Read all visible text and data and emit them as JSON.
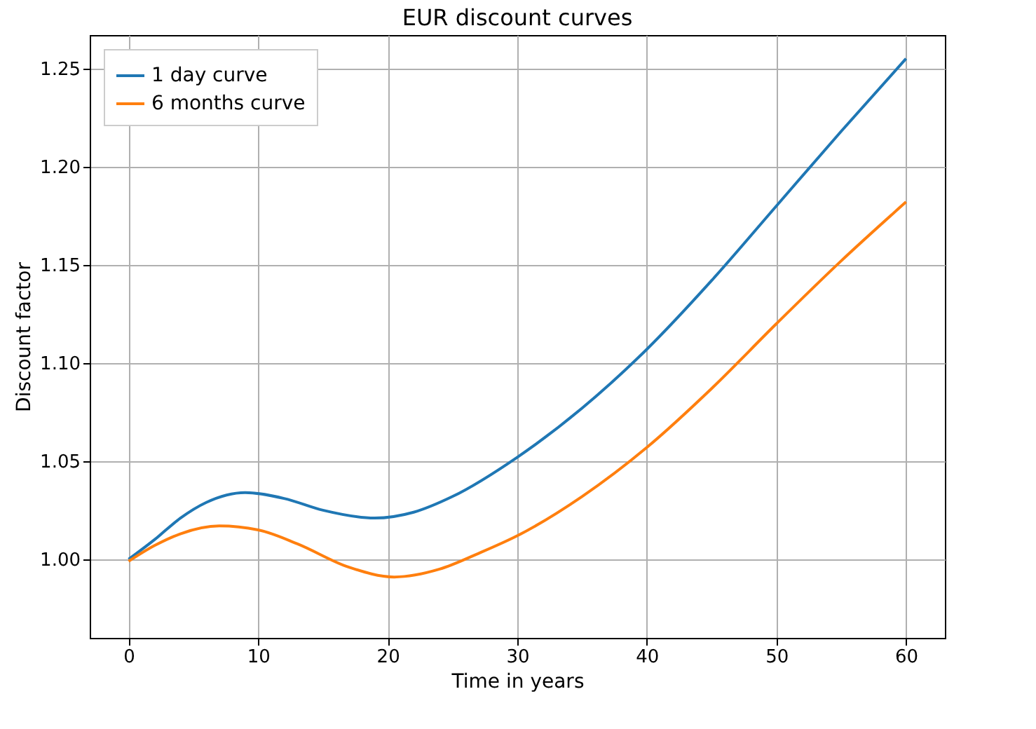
{
  "chart_data": {
    "type": "line",
    "title": "EUR discount curves",
    "xlabel": "Time in years",
    "ylabel": "Discount factor",
    "xlim": [
      -3,
      63
    ],
    "xticks": [
      0,
      10,
      20,
      30,
      40,
      50,
      60
    ],
    "ylim": [
      0.96,
      1.267
    ],
    "yticks": [
      {
        "value": 1,
        "label": "1.00"
      },
      1.05,
      {
        "value": 1.1,
        "label": "1.10"
      },
      1.15,
      {
        "value": 1.2,
        "label": "1.20"
      },
      1.25
    ],
    "grid": true,
    "legend": "top left",
    "marker": "none",
    "line_style": "solid",
    "x": [
      0,
      2,
      4,
      6,
      9,
      12,
      15,
      19,
      22,
      25,
      30,
      35,
      40,
      45,
      50,
      55,
      60
    ],
    "series": [
      {
        "name": "1 day curve",
        "color": "#1f77b4",
        "values": [
          1.0,
          1.01,
          1.021,
          1.029,
          1.034,
          1.031,
          1.025,
          1.021,
          1.024,
          1.032,
          1.052,
          1.077,
          1.107,
          1.142,
          1.18,
          1.218,
          1.255
        ]
      },
      {
        "name": "6 months curve",
        "color": "#ff7f0e",
        "x": [
          0,
          2,
          4,
          7,
          10,
          13,
          17,
          20.5,
          24,
          27,
          30,
          35,
          40,
          45,
          50,
          55,
          60
        ],
        "values": [
          0.999,
          1.007,
          1.013,
          1.017,
          1.015,
          1.008,
          0.996,
          0.991,
          0.995,
          1.003,
          1.012,
          1.032,
          1.057,
          1.087,
          1.12,
          1.152,
          1.182
        ]
      }
    ]
  }
}
